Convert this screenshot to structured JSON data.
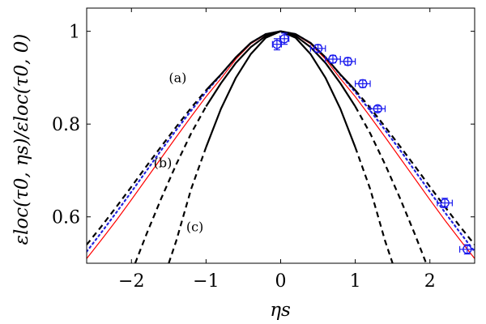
{
  "chart_data": {
    "type": "line",
    "xlabel": "ηs",
    "ylabel": "εloc(τ0, ηs)/εloc(τ0, 0)",
    "xlim": [
      -2.6,
      2.6
    ],
    "ylim": [
      0.5,
      1.05
    ],
    "xticks": [
      {
        "value": -2,
        "label": "−2"
      },
      {
        "value": -1,
        "label": "−1"
      },
      {
        "value": 0,
        "label": "0"
      },
      {
        "value": 1,
        "label": "1"
      },
      {
        "value": 2,
        "label": "2"
      }
    ],
    "yticks": [
      {
        "value": 0.6,
        "label": "0.6"
      },
      {
        "value": 0.8,
        "label": "0.8"
      },
      {
        "value": 1.0,
        "label": "1"
      }
    ],
    "annotations": [
      {
        "text": "(a)",
        "x": -1.38,
        "y": 0.89
      },
      {
        "text": "(b)",
        "x": -1.58,
        "y": 0.707
      },
      {
        "text": "(c)",
        "x": -1.15,
        "y": 0.569
      }
    ],
    "series": [
      {
        "style": "red-solid",
        "color": "#ff0000",
        "dash": "",
        "width": 1.2,
        "x": [
          -2.6,
          -2.4,
          -2.2,
          -2.0,
          -1.8,
          -1.6,
          -1.4,
          -1.2,
          -1.0,
          -0.8,
          -0.6,
          -0.4,
          -0.2,
          0.0,
          0.2,
          0.4,
          0.6,
          0.8,
          1.0,
          1.2,
          1.4,
          1.6,
          1.8,
          2.0,
          2.2,
          2.4,
          2.6
        ],
        "y": [
          0.51,
          0.551,
          0.593,
          0.637,
          0.682,
          0.727,
          0.772,
          0.816,
          0.859,
          0.898,
          0.94,
          0.973,
          0.993,
          1.0,
          0.993,
          0.973,
          0.94,
          0.898,
          0.859,
          0.816,
          0.772,
          0.727,
          0.682,
          0.637,
          0.593,
          0.551,
          0.51
        ]
      },
      {
        "style": "blue-dotted",
        "color": "#2222dd",
        "dash": "2,4",
        "width": 2.2,
        "x": [
          -2.6,
          -2.4,
          -2.2,
          -2.0,
          -1.8,
          -1.6,
          -1.4,
          -1.2,
          -1.0,
          -0.8,
          -0.6,
          -0.4,
          -0.2,
          0.0,
          0.2,
          0.4,
          0.6,
          0.8,
          1.0,
          1.2,
          1.4,
          1.6,
          1.8,
          2.0,
          2.2,
          2.4,
          2.6
        ],
        "y": [
          0.525,
          0.567,
          0.61,
          0.654,
          0.699,
          0.744,
          0.787,
          0.829,
          0.869,
          0.906,
          0.944,
          0.975,
          0.994,
          1.0,
          0.994,
          0.975,
          0.944,
          0.906,
          0.869,
          0.829,
          0.787,
          0.744,
          0.699,
          0.654,
          0.61,
          0.567,
          0.525
        ]
      },
      {
        "style": "black-a",
        "color": "#000000",
        "width": 2.2,
        "solid_range": [
          -1.0,
          1.0
        ],
        "x": [
          -2.6,
          -2.4,
          -2.2,
          -2.0,
          -1.8,
          -1.6,
          -1.4,
          -1.2,
          -1.0,
          -0.8,
          -0.6,
          -0.4,
          -0.2,
          0.0,
          0.2,
          0.4,
          0.6,
          0.8,
          1.0,
          1.2,
          1.4,
          1.6,
          1.8,
          2.0,
          2.2,
          2.4,
          2.6
        ],
        "y": [
          0.54,
          0.58,
          0.622,
          0.665,
          0.709,
          0.752,
          0.794,
          0.835,
          0.873,
          0.907,
          0.944,
          0.975,
          0.994,
          1.0,
          0.994,
          0.975,
          0.944,
          0.907,
          0.873,
          0.835,
          0.794,
          0.752,
          0.709,
          0.665,
          0.622,
          0.58,
          0.54
        ]
      },
      {
        "style": "black-b",
        "color": "#000000",
        "width": 2.2,
        "solid_range": [
          -1.0,
          1.0
        ],
        "x": [
          -1.95,
          -1.8,
          -1.6,
          -1.4,
          -1.2,
          -1.0,
          -0.8,
          -0.6,
          -0.4,
          -0.2,
          0.0,
          0.2,
          0.4,
          0.6,
          0.8,
          1.0,
          1.2,
          1.4,
          1.6,
          1.8,
          1.95
        ],
        "y": [
          0.5,
          0.562,
          0.64,
          0.713,
          0.78,
          0.838,
          0.888,
          0.932,
          0.966,
          0.99,
          1.0,
          0.99,
          0.966,
          0.932,
          0.888,
          0.838,
          0.78,
          0.713,
          0.64,
          0.562,
          0.5
        ]
      },
      {
        "style": "black-c",
        "color": "#000000",
        "width": 2.2,
        "solid_range": [
          -1.0,
          1.0
        ],
        "x": [
          -1.5,
          -1.4,
          -1.2,
          -1.0,
          -0.8,
          -0.6,
          -0.4,
          -0.2,
          0.0,
          0.2,
          0.4,
          0.6,
          0.8,
          1.0,
          1.2,
          1.4,
          1.5
        ],
        "y": [
          0.5,
          0.548,
          0.66,
          0.75,
          0.833,
          0.9,
          0.951,
          0.986,
          1.0,
          0.986,
          0.951,
          0.9,
          0.833,
          0.75,
          0.66,
          0.548,
          0.5
        ]
      }
    ],
    "points": {
      "color": "#1a1aee",
      "data": [
        {
          "x": -0.05,
          "y": 0.972,
          "xerr": 0.06,
          "yerr": 0.012
        },
        {
          "x": 0.05,
          "y": 0.984,
          "xerr": 0.06,
          "yerr": 0.012
        },
        {
          "x": 0.5,
          "y": 0.963,
          "xerr": 0.1,
          "yerr": 0.008
        },
        {
          "x": 0.7,
          "y": 0.94,
          "xerr": 0.1,
          "yerr": 0.008
        },
        {
          "x": 0.9,
          "y": 0.935,
          "xerr": 0.1,
          "yerr": 0.008
        },
        {
          "x": 1.1,
          "y": 0.887,
          "xerr": 0.1,
          "yerr": 0.008
        },
        {
          "x": 1.3,
          "y": 0.833,
          "xerr": 0.1,
          "yerr": 0.006
        },
        {
          "x": 2.2,
          "y": 0.63,
          "xerr": 0.1,
          "yerr": 0.01
        },
        {
          "x": 2.5,
          "y": 0.53,
          "xerr": 0.1,
          "yerr": 0.01
        }
      ]
    }
  }
}
